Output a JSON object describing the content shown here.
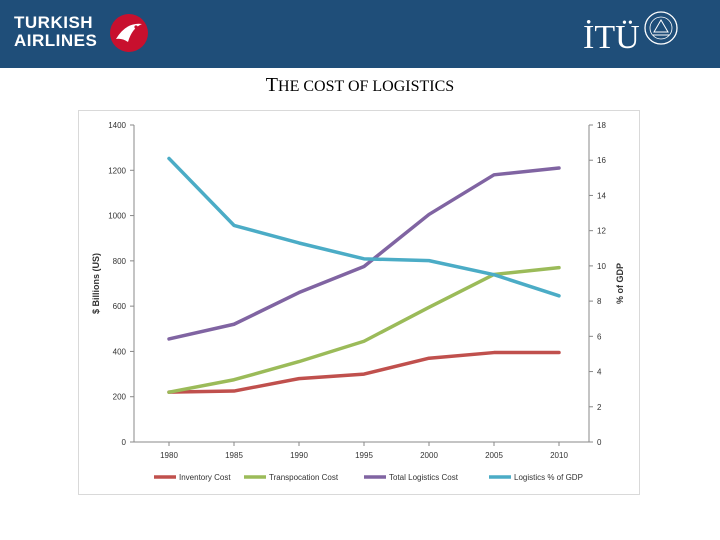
{
  "header": {
    "left_logo_text": "TURKISH AIRLINES",
    "right_logo_text": "İTÜ",
    "colors": {
      "band": "#1f4e79",
      "logo_red": "#c8102e"
    }
  },
  "slide": {
    "title_cap": "T",
    "title_rest": "HE COST OF LOGISTICS"
  },
  "chart_data": {
    "type": "line",
    "title": "",
    "categories": [
      "1980",
      "1985",
      "1990",
      "1995",
      "2000",
      "2005",
      "2010"
    ],
    "ylabel": "$ Billions (US)",
    "y2label": "% of GDP",
    "ylim": [
      0,
      1400
    ],
    "y2lim": [
      0,
      18
    ],
    "yticks": [
      "0",
      "200",
      "400",
      "600",
      "800",
      "1000",
      "1200",
      "1400"
    ],
    "y2ticks": [
      "0",
      "2",
      "4",
      "6",
      "8",
      "10",
      "12",
      "14",
      "16",
      "18"
    ],
    "series": [
      {
        "name": "Inventory Cost",
        "axis": "left",
        "color": "#c0504d",
        "values": [
          220,
          225,
          280,
          300,
          370,
          395,
          395
        ]
      },
      {
        "name": "Transpocation Cost",
        "axis": "left",
        "color": "#9bbb59",
        "values": [
          220,
          275,
          355,
          445,
          595,
          740,
          770
        ]
      },
      {
        "name": "Total Logistics Cost",
        "axis": "left",
        "color": "#8064a2",
        "values": [
          455,
          520,
          660,
          775,
          1005,
          1180,
          1210
        ]
      },
      {
        "name": "Logistics % of GDP",
        "axis": "right",
        "color": "#4bacc6",
        "values": [
          16.1,
          12.3,
          11.3,
          10.4,
          10.3,
          9.5,
          8.3
        ]
      }
    ]
  }
}
